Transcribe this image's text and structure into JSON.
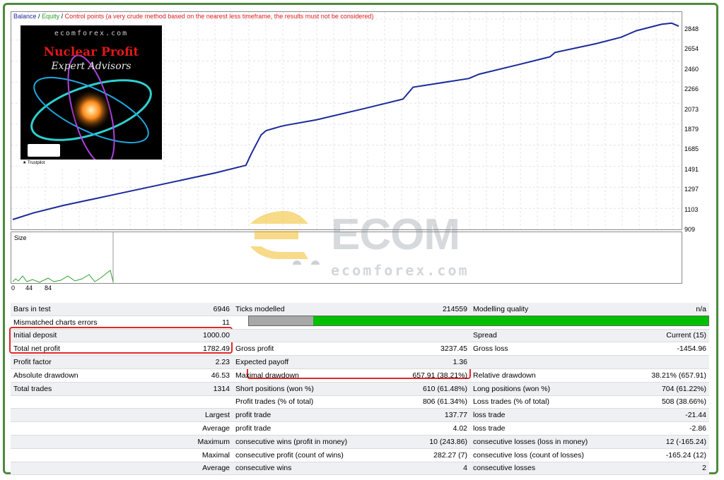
{
  "chart": {
    "legend_balance": "Balance",
    "legend_sep": "/",
    "legend_equity": "Equity",
    "legend_control": "Control points (a very crude method based on the nearest less timeframe, the results must not be considered)",
    "color_balance": "#1b2a9a",
    "color_equity": "#2e9e2e",
    "color_control": "#e01b1b",
    "yticks": [
      "2848",
      "2654",
      "2460",
      "2266",
      "2073",
      "1879",
      "1685",
      "1491",
      "1297",
      "1103",
      "909"
    ],
    "ylim": [
      909,
      2848
    ],
    "xticks": [
      "0",
      "44",
      "84"
    ],
    "size_label": "Size"
  },
  "chart_data": {
    "type": "line",
    "title": "",
    "xlabel": "",
    "ylabel": "",
    "ylim": [
      909,
      2848
    ],
    "xlim": [
      0,
      1314
    ],
    "series": [
      {
        "name": "Balance",
        "x": [
          0,
          40,
          100,
          200,
          300,
          400,
          460,
          470,
          490,
          500,
          530,
          540,
          600,
          700,
          770,
          790,
          900,
          920,
          1000,
          1060,
          1070,
          1150,
          1200,
          1230,
          1280,
          1300,
          1314
        ],
        "y": [
          1000,
          1060,
          1130,
          1230,
          1330,
          1430,
          1500,
          1600,
          1780,
          1820,
          1860,
          1870,
          1920,
          2030,
          2110,
          2220,
          2300,
          2340,
          2430,
          2500,
          2540,
          2620,
          2680,
          2740,
          2800,
          2810,
          2782
        ]
      }
    ]
  },
  "ad": {
    "site": "ecomforex.com",
    "title": "Nuclear Profit",
    "subtitle": "Expert Advisors",
    "trustpilot": "★ Trustpilot"
  },
  "watermark": {
    "word": "ECOM",
    "site": "ecomforex.com"
  },
  "stats": {
    "row1": [
      "Bars in test",
      "6946",
      "Ticks modelled",
      "214559",
      "Modelling quality",
      "n/a"
    ],
    "row2": [
      "Mismatched charts errors",
      "11",
      "",
      "",
      "",
      ""
    ],
    "row3": [
      "Initial deposit",
      "1000.00",
      "",
      "",
      "Spread",
      "Current (15)"
    ],
    "row4": [
      "Total net profit",
      "1782.49",
      "Gross profit",
      "3237.45",
      "Gross loss",
      "-1454.96"
    ],
    "row5": [
      "Profit factor",
      "2.23",
      "Expected payoff",
      "1.36",
      "",
      ""
    ],
    "row6": [
      "Absolute drawdown",
      "46.53",
      "Maximal drawdown",
      "657.91 (38.21%)",
      "Relative drawdown",
      "38.21% (657.91)"
    ],
    "row7": [
      "Total trades",
      "1314",
      "Short positions (won %)",
      "610 (61.48%)",
      "Long positions (won %)",
      "704 (61.22%)"
    ],
    "row8": [
      "",
      "",
      "Profit trades (% of total)",
      "806 (61.34%)",
      "Loss trades (% of total)",
      "508 (38.66%)"
    ],
    "row9": [
      "",
      "Largest",
      "profit trade",
      "137.77",
      "loss trade",
      "-21.44"
    ],
    "row10": [
      "",
      "Average",
      "profit trade",
      "4.02",
      "loss trade",
      "-2.86"
    ],
    "row11": [
      "",
      "Maximum",
      "consecutive wins (profit in money)",
      "10 (243.86)",
      "consecutive losses (loss in money)",
      "12 (-165.24)"
    ],
    "row12": [
      "",
      "Maximal",
      "consecutive profit (count of wins)",
      "282.27 (7)",
      "consecutive loss (count of losses)",
      "-165.24 (12)"
    ],
    "row13": [
      "",
      "Average",
      "consecutive wins",
      "4",
      "consecutive losses",
      "2"
    ]
  },
  "modelling_quality_bar": {
    "gray_fraction": 0.14
  }
}
